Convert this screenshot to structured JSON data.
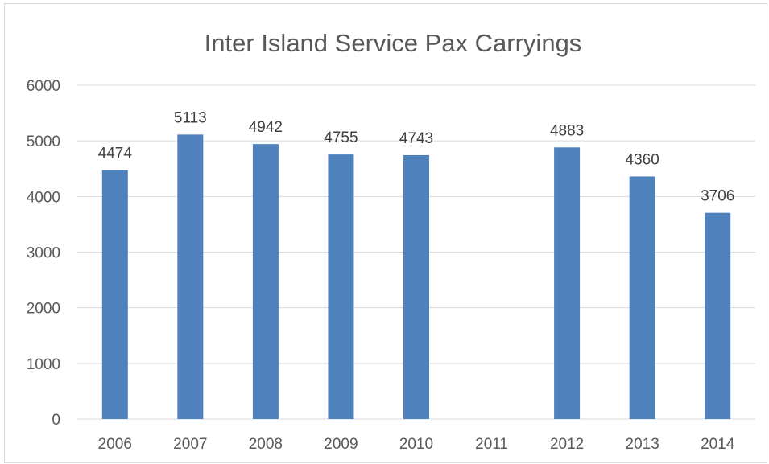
{
  "chart_data": {
    "type": "bar",
    "title": "Inter Island Service Pax Carryings",
    "xlabel": "",
    "ylabel": "",
    "categories": [
      "2006",
      "2007",
      "2008",
      "2009",
      "2010",
      "2011",
      "2012",
      "2013",
      "2014"
    ],
    "values": [
      4474,
      5113,
      4942,
      4755,
      4743,
      null,
      4883,
      4360,
      3706
    ],
    "data_labels": [
      "4474",
      "5113",
      "4942",
      "4755",
      "4743",
      "",
      "4883",
      "4360",
      "3706"
    ],
    "ylim": [
      0,
      6000
    ],
    "yticks": [
      "0",
      "1000",
      "2000",
      "3000",
      "4000",
      "5000",
      "6000"
    ],
    "grid": true,
    "legend": "none",
    "bar_color": "#4f81bd"
  }
}
